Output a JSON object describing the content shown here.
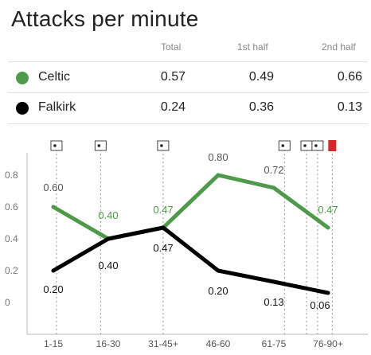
{
  "title": "Attacks per minute",
  "table": {
    "columns": [
      "Total",
      "1st half",
      "2nd half"
    ],
    "rows": [
      {
        "team": "Celtic",
        "color": "#4f9a4a",
        "values": [
          "0.57",
          "0.49",
          "0.66"
        ]
      },
      {
        "team": "Falkirk",
        "color": "#000000",
        "values": [
          "0.24",
          "0.36",
          "0.13"
        ]
      }
    ]
  },
  "chart_data": {
    "type": "line",
    "categories": [
      "1-15",
      "16-30",
      "31-45+",
      "46-60",
      "61-75",
      "76-90+"
    ],
    "yticks": [
      "0",
      "0.2",
      "0.4",
      "0.6",
      "0.8"
    ],
    "ylim": [
      0,
      0.9
    ],
    "series": [
      {
        "name": "Celtic",
        "color": "#4f9a4a",
        "values": [
          0.6,
          0.4,
          0.47,
          0.8,
          0.72,
          0.47
        ],
        "labels": [
          "0.60",
          "0.40",
          "0.47",
          "0.80",
          "0.72",
          "0.47"
        ]
      },
      {
        "name": "Falkirk",
        "color": "#000000",
        "values": [
          0.2,
          0.4,
          0.47,
          0.2,
          0.13,
          0.06
        ],
        "labels": [
          "0.20",
          "0.40",
          "0.47",
          "0.20",
          "0.13",
          "0.06"
        ]
      }
    ],
    "events": [
      {
        "minute": 8,
        "icon": "substitution-icon"
      },
      {
        "minute": 20,
        "icon": "substitution-icon"
      },
      {
        "minute": 37,
        "icon": "substitution-icon"
      },
      {
        "minute": 70,
        "icon": "substitution-icon"
      },
      {
        "minute": 76,
        "icon": "substitution-icon"
      },
      {
        "minute": 79,
        "icon": "substitution-icon"
      },
      {
        "minute": 83,
        "icon": "red-card-icon"
      }
    ],
    "grid": false
  }
}
